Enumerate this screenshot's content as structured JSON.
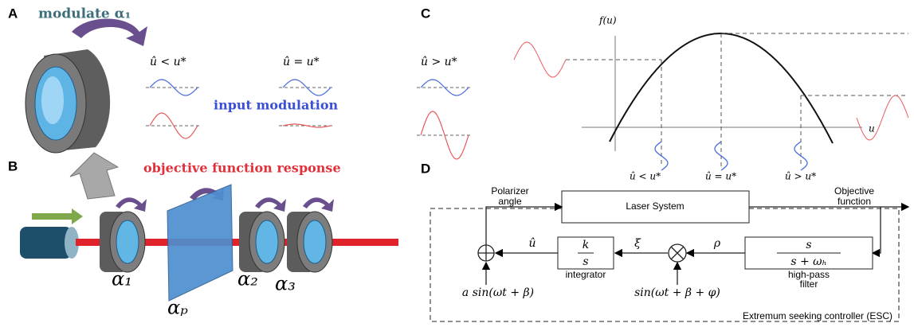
{
  "panels": {
    "a": {
      "label": "A",
      "title": "modulate α₁",
      "cases": [
        "û < u*",
        "û = u*",
        "û > u*"
      ],
      "input_label": "input modulation",
      "response_label": "objective function response"
    },
    "b": {
      "label": "B",
      "components": [
        "α₁",
        "αₚ",
        "α₂",
        "α₃"
      ]
    },
    "c": {
      "label": "C",
      "y_axis": "f(u)",
      "x_axis": "u",
      "cases": [
        "û < u*",
        "û = u*",
        "û > u*"
      ]
    },
    "d": {
      "label": "D",
      "polarizer": [
        "Polarizer",
        "angle"
      ],
      "laser": "Laser System",
      "objective": [
        "Objective",
        "function"
      ],
      "u_hat": "û",
      "xi": "ξ",
      "rho": "ρ",
      "integrator_num": "k",
      "integrator_den": "s",
      "integrator": "integrator",
      "filter_num": "s",
      "filter_den": "s + ωₕ",
      "filter": [
        "high-pass",
        "filter"
      ],
      "input_signal": "a sin(ωt + β)",
      "demod_signal": "sin(ωt + β + φ)",
      "controller": "Extremum seeking controller (ESC)"
    }
  }
}
